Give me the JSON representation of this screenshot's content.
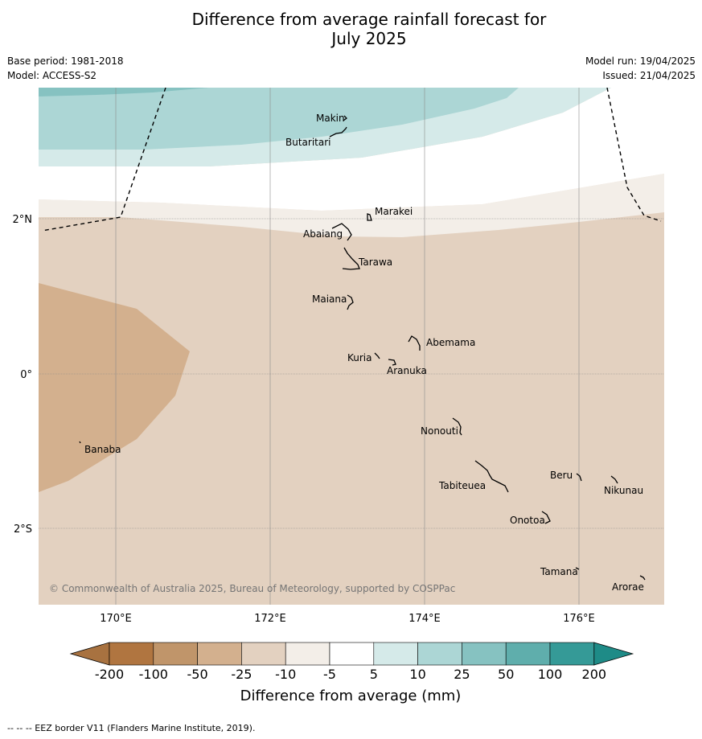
{
  "title_line1": "Difference from average rainfall forecast for",
  "title_line2": "July 2025",
  "meta": {
    "base_period": "Base period: 1981-2018",
    "model": "Model: ACCESS-S2",
    "model_run": "Model run: 19/04/2025",
    "issued": "Issued: 21/04/2025"
  },
  "axes": {
    "lat_labels": [
      "2°N",
      "0°",
      "2°S"
    ],
    "lon_labels": [
      "170°E",
      "172°E",
      "174°E",
      "176°E"
    ]
  },
  "islands": [
    "Makin",
    "Butaritari",
    "Marakei",
    "Abaiang",
    "Tarawa",
    "Maiana",
    "Abemama",
    "Kuria",
    "Aranuka",
    "Nonouti",
    "Banaba",
    "Tabiteuea",
    "Beru",
    "Nikunau",
    "Onotoa",
    "Tamana",
    "Arorae"
  ],
  "copyright": "© Commonwealth of Australia 2025, Bureau of Meteorology, supported by COSPPac",
  "legend": {
    "ticks": [
      "-200",
      "-100",
      "-50",
      "-25",
      "-10",
      "-5",
      "5",
      "10",
      "25",
      "50",
      "100",
      "200"
    ],
    "label": "Difference from average (mm)",
    "colors": [
      "#a87240",
      "#b07540",
      "#c0956a",
      "#d3b08e",
      "#e3d1c0",
      "#f3eee8",
      "#ffffff",
      "#d5eae9",
      "#acd6d5",
      "#86c2c1",
      "#5faeac",
      "#359a97"
    ]
  },
  "footer": "--  --  -- EEZ border V11 (Flanders Marine Institute, 2019)."
}
